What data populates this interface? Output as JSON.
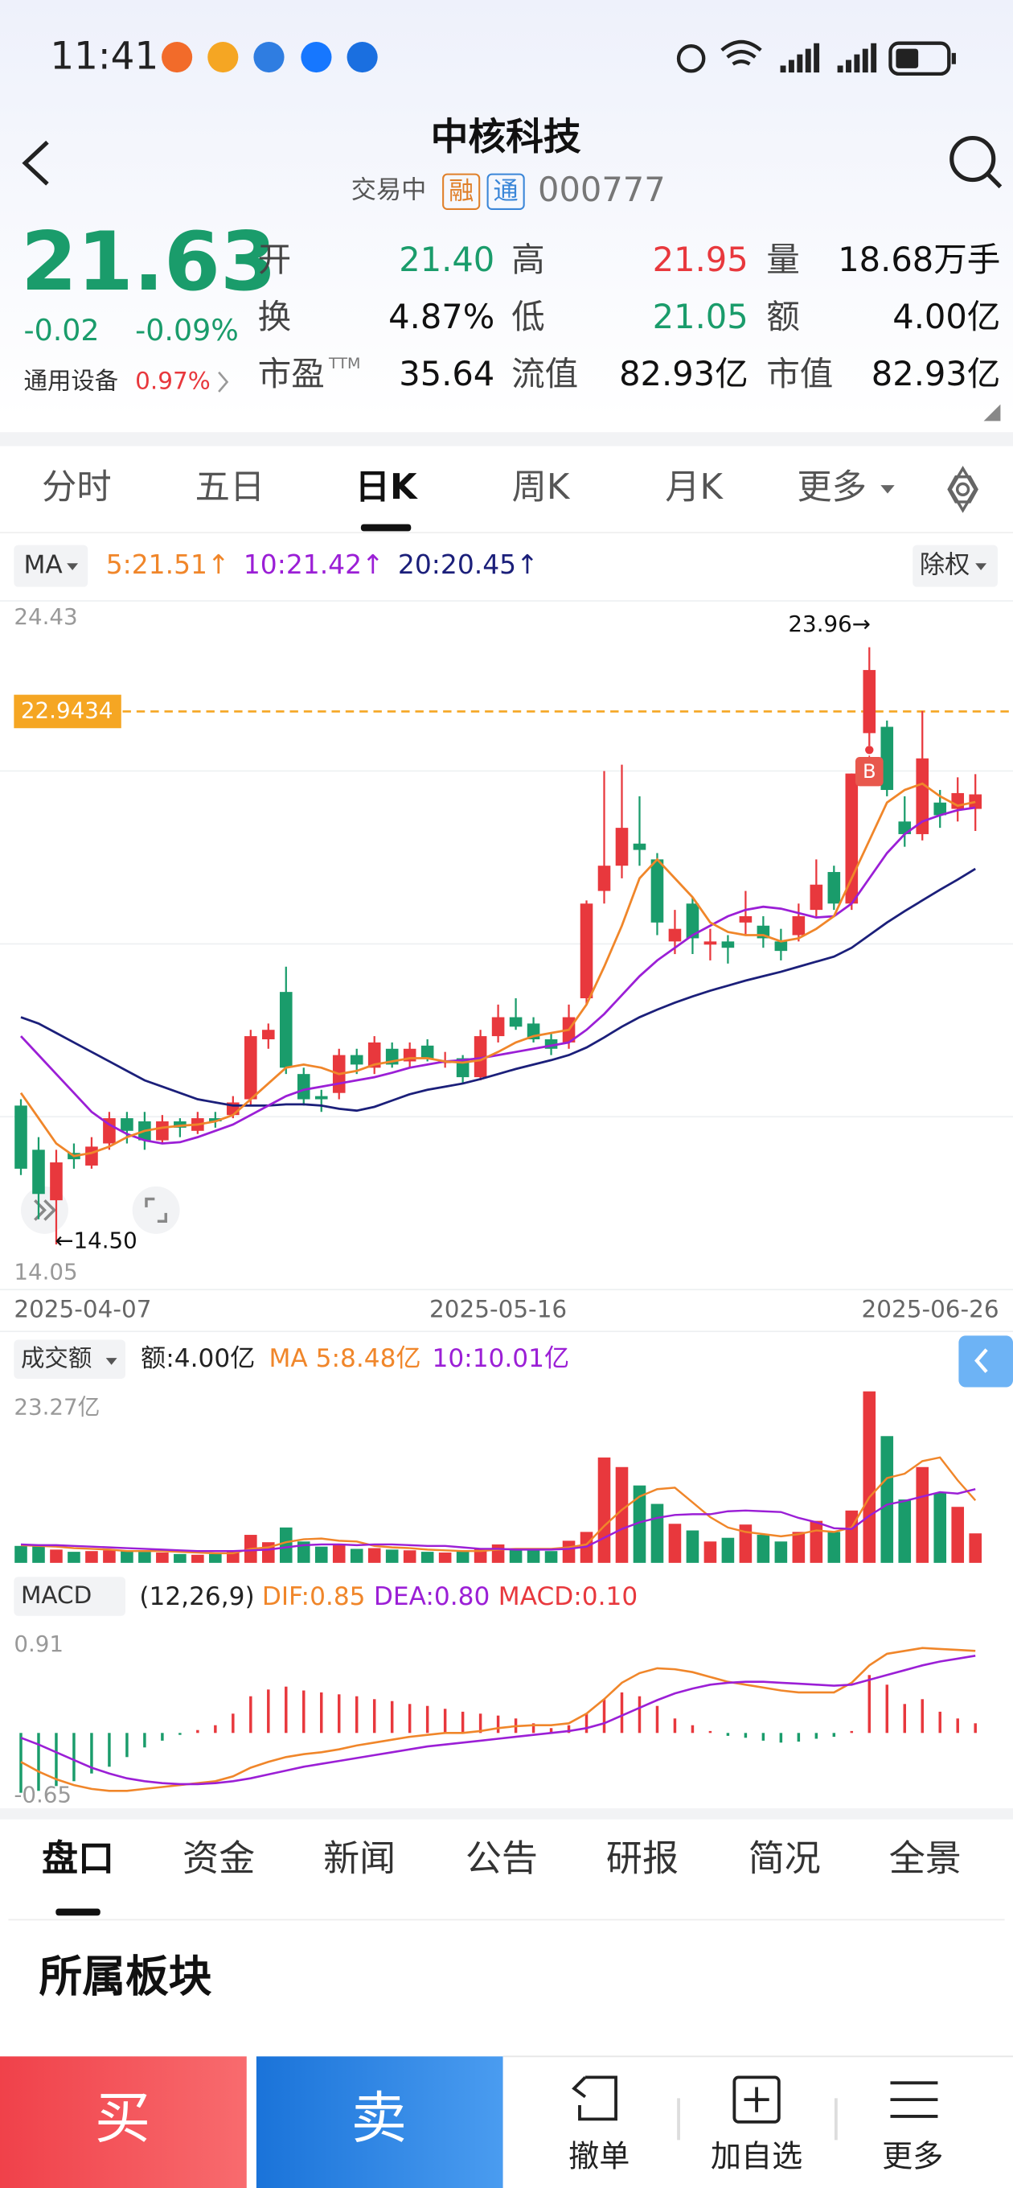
{
  "status_bar": {
    "time": "11:41"
  },
  "header": {
    "title": "中核科技",
    "status": "交易中",
    "badges": [
      "融",
      "通"
    ],
    "code": "000777"
  },
  "quote": {
    "price": "21.63",
    "change": "-0.02",
    "change_pct": "-0.09%",
    "color": "#1a9c6b",
    "sector": "通用设备",
    "sector_change": "0.97%",
    "sector_color": "#e8383d",
    "fields": [
      {
        "label": "开",
        "value": "21.40",
        "color": "#1a9c6b"
      },
      {
        "label": "高",
        "value": "21.95",
        "color": "#e8383d"
      },
      {
        "label": "量",
        "value": "18.68万手",
        "color": "#111111"
      },
      {
        "label": "换",
        "value": "4.87%",
        "color": "#111111"
      },
      {
        "label": "低",
        "value": "21.05",
        "color": "#1a9c6b"
      },
      {
        "label": "额",
        "value": "4.00亿",
        "color": "#111111"
      },
      {
        "label": "市盈",
        "sup": "TTM",
        "value": "35.64",
        "color": "#111111"
      },
      {
        "label": "流值",
        "value": "82.93亿",
        "color": "#111111"
      },
      {
        "label": "市值",
        "value": "82.93亿",
        "color": "#111111"
      }
    ]
  },
  "period_tabs": {
    "items": [
      "分时",
      "五日",
      "日K",
      "周K",
      "月K",
      "更多"
    ],
    "active": 2
  },
  "kline": {
    "type": "candlestick",
    "indicator": "MA",
    "ma_legend": [
      {
        "text": "5:21.51↑",
        "color": "#f0862a"
      },
      {
        "text": "10:21.42↑",
        "color": "#9b1fd6"
      },
      {
        "text": "20:20.45↑",
        "color": "#1b1f7a"
      }
    ],
    "adjust": "除权",
    "ylim": [
      14.05,
      24.43
    ],
    "yticks": [
      24.43,
      14.05
    ],
    "ref_line": 22.9434,
    "ref_color": "#f5a623",
    "high_label": {
      "value": 23.96,
      "label": "23.96→"
    },
    "low_label": {
      "value": 14.5,
      "label": "←14.50"
    },
    "buy_marker": "B",
    "up_color": "#e8383d",
    "down_color": "#1a9c6b",
    "categories": [
      "2025-04-07",
      null,
      null,
      null,
      null,
      null,
      null,
      null,
      null,
      null,
      null,
      null,
      null,
      null,
      null,
      null,
      null,
      null,
      null,
      null,
      null,
      null,
      null,
      null,
      null,
      null,
      null,
      "2025-05-16",
      null,
      null,
      null,
      null,
      null,
      null,
      null,
      null,
      null,
      null,
      null,
      null,
      null,
      null,
      null,
      null,
      null,
      null,
      null,
      null,
      null,
      null,
      null,
      null,
      null,
      null,
      "2025-06-26"
    ],
    "open": [
      16.7,
      16.0,
      15.2,
      15.95,
      15.75,
      16.1,
      16.5,
      16.45,
      16.15,
      16.45,
      16.3,
      16.5,
      16.55,
      16.8,
      17.75,
      18.5,
      17.2,
      16.85,
      16.9,
      17.5,
      17.3,
      17.6,
      17.4,
      17.65,
      17.4,
      17.45,
      17.15,
      17.8,
      18.1,
      18.0,
      17.75,
      17.7,
      18.4,
      20.1,
      20.5,
      20.85,
      20.6,
      19.3,
      19.9,
      19.25,
      19.3,
      19.6,
      19.55,
      19.3,
      19.4,
      19.8,
      20.4,
      19.9,
      22.6,
      22.7,
      21.2,
      21.0,
      21.5,
      21.4,
      21.4
    ],
    "close": [
      15.7,
      15.3,
      15.8,
      15.85,
      16.05,
      16.5,
      16.3,
      16.15,
      16.45,
      16.35,
      16.5,
      16.45,
      16.75,
      17.8,
      17.9,
      17.3,
      16.8,
      16.8,
      17.5,
      17.35,
      17.7,
      17.35,
      17.6,
      17.45,
      17.4,
      17.15,
      17.8,
      18.1,
      17.95,
      17.75,
      17.6,
      18.1,
      19.9,
      20.5,
      21.1,
      20.75,
      19.6,
      19.5,
      19.35,
      19.3,
      19.2,
      19.7,
      19.35,
      19.15,
      19.7,
      20.2,
      19.9,
      21.96,
      23.6,
      21.7,
      21.0,
      22.2,
      21.3,
      21.65,
      21.63
    ],
    "high": [
      16.8,
      16.2,
      16.0,
      16.1,
      16.2,
      16.6,
      16.6,
      16.6,
      16.55,
      16.5,
      16.6,
      16.6,
      16.85,
      17.9,
      18.0,
      18.9,
      17.3,
      16.95,
      17.6,
      17.6,
      17.8,
      17.7,
      17.7,
      17.75,
      17.55,
      17.5,
      17.9,
      18.3,
      18.4,
      18.1,
      17.85,
      18.3,
      19.95,
      22.0,
      22.1,
      21.6,
      20.7,
      19.8,
      20.0,
      19.5,
      19.4,
      20.1,
      19.7,
      19.5,
      19.9,
      20.6,
      20.5,
      21.96,
      23.96,
      22.8,
      21.6,
      22.95,
      21.7,
      21.9,
      21.95
    ],
    "low": [
      15.6,
      14.9,
      14.5,
      15.7,
      15.7,
      16.0,
      16.1,
      16.0,
      16.1,
      16.2,
      16.25,
      16.35,
      16.5,
      16.7,
      17.6,
      17.2,
      16.7,
      16.6,
      16.8,
      17.2,
      17.2,
      17.3,
      17.3,
      17.4,
      17.3,
      17.05,
      17.1,
      17.7,
      17.9,
      17.7,
      17.5,
      17.6,
      18.3,
      19.9,
      20.3,
      20.5,
      19.4,
      19.1,
      19.1,
      19.0,
      18.95,
      19.4,
      19.2,
      19.0,
      19.3,
      19.7,
      19.8,
      19.8,
      22.4,
      21.6,
      20.8,
      20.9,
      21.1,
      21.2,
      21.05
    ],
    "series": [
      {
        "color": "#1b1f7a",
        "values": [
          18.1,
          18.0,
          17.85,
          17.7,
          17.55,
          17.4,
          17.25,
          17.1,
          17.0,
          16.9,
          16.8,
          16.75,
          16.7,
          16.7,
          16.7,
          16.72,
          16.72,
          16.7,
          16.65,
          16.62,
          16.68,
          16.78,
          16.88,
          16.95,
          17.0,
          17.05,
          17.12,
          17.2,
          17.28,
          17.35,
          17.42,
          17.5,
          17.62,
          17.78,
          17.95,
          18.1,
          18.22,
          18.33,
          18.43,
          18.52,
          18.6,
          18.68,
          18.75,
          18.82,
          18.9,
          18.98,
          19.06,
          19.2,
          19.4,
          19.6,
          19.78,
          19.95,
          20.12,
          20.28,
          20.45
        ]
      },
      {
        "color": "#9b1fd6",
        "values": [
          17.8,
          17.5,
          17.2,
          16.9,
          16.6,
          16.4,
          16.25,
          16.15,
          16.1,
          16.12,
          16.2,
          16.3,
          16.4,
          16.55,
          16.7,
          16.85,
          16.95,
          17.0,
          17.05,
          17.1,
          17.15,
          17.22,
          17.3,
          17.35,
          17.4,
          17.42,
          17.45,
          17.5,
          17.55,
          17.6,
          17.65,
          17.7,
          17.9,
          18.15,
          18.45,
          18.75,
          19.0,
          19.2,
          19.4,
          19.55,
          19.7,
          19.8,
          19.85,
          19.82,
          19.75,
          19.68,
          19.7,
          19.9,
          20.3,
          20.7,
          21.0,
          21.2,
          21.3,
          21.38,
          21.42
        ]
      },
      {
        "color": "#f0862a",
        "values": [
          16.9,
          16.5,
          16.1,
          15.9,
          15.95,
          16.05,
          16.2,
          16.3,
          16.35,
          16.38,
          16.4,
          16.45,
          16.55,
          16.8,
          17.05,
          17.3,
          17.35,
          17.3,
          17.2,
          17.25,
          17.35,
          17.4,
          17.45,
          17.45,
          17.4,
          17.38,
          17.42,
          17.55,
          17.7,
          17.8,
          17.85,
          17.9,
          18.3,
          18.9,
          19.55,
          20.3,
          20.6,
          20.3,
          20.0,
          19.6,
          19.45,
          19.4,
          19.4,
          19.3,
          19.35,
          19.5,
          19.7,
          20.3,
          20.9,
          21.5,
          21.7,
          21.8,
          21.6,
          21.45,
          21.51
        ]
      }
    ]
  },
  "volume": {
    "type": "bar",
    "selector": "成交额",
    "amount": "额:4.00亿",
    "ma_legend": [
      {
        "text": "MA 5:8.48亿",
        "color": "#f0862a"
      },
      {
        "text": "10:10.01亿",
        "color": "#9b1fd6"
      }
    ],
    "ylim": [
      0,
      23.27
    ],
    "yticks": [
      {
        "value": 23.27,
        "label": "23.27亿"
      }
    ],
    "values": [
      2.3,
      2.5,
      1.8,
      1.5,
      1.6,
      1.7,
      1.6,
      1.5,
      1.4,
      1.2,
      1.1,
      1.2,
      1.6,
      3.8,
      2.8,
      4.8,
      2.9,
      2.2,
      2.6,
      1.9,
      2.0,
      1.8,
      1.7,
      1.5,
      1.4,
      1.6,
      2.0,
      2.5,
      1.9,
      1.7,
      1.6,
      3.0,
      4.2,
      14.3,
      13.0,
      10.5,
      8.0,
      5.3,
      4.4,
      2.9,
      3.4,
      5.2,
      3.8,
      2.9,
      4.2,
      5.7,
      4.2,
      7.1,
      23.27,
      17.2,
      8.6,
      13.0,
      9.5,
      7.6,
      4.0
    ],
    "series": [
      {
        "color": "#f0862a",
        "values": [
          2.4,
          2.3,
          2.2,
          2.0,
          1.9,
          1.8,
          1.6,
          1.6,
          1.6,
          1.5,
          1.4,
          1.3,
          1.3,
          1.9,
          2.1,
          2.8,
          3.2,
          3.3,
          3.0,
          2.9,
          2.3,
          2.1,
          2.0,
          1.8,
          1.7,
          1.6,
          1.6,
          1.8,
          1.9,
          1.9,
          1.9,
          2.1,
          2.5,
          5.0,
          7.2,
          9.0,
          10.0,
          10.2,
          8.2,
          6.2,
          4.8,
          4.2,
          3.9,
          3.6,
          3.9,
          4.4,
          4.2,
          4.8,
          8.9,
          11.5,
          12.1,
          13.8,
          14.3,
          11.2,
          8.48
        ]
      },
      {
        "color": "#9b1fd6",
        "values": [
          2.5,
          2.4,
          2.4,
          2.3,
          2.2,
          2.1,
          2.0,
          1.9,
          1.8,
          1.7,
          1.6,
          1.6,
          1.6,
          1.7,
          1.8,
          2.1,
          2.4,
          2.5,
          2.5,
          2.4,
          2.5,
          2.5,
          2.4,
          2.3,
          2.3,
          2.1,
          1.9,
          1.9,
          1.8,
          1.8,
          1.8,
          1.9,
          2.2,
          3.4,
          4.6,
          5.5,
          6.1,
          6.5,
          6.6,
          6.6,
          7.0,
          7.1,
          7.0,
          6.9,
          6.1,
          5.5,
          4.7,
          4.6,
          6.4,
          7.9,
          8.4,
          9.0,
          9.6,
          9.4,
          10.01
        ]
      }
    ]
  },
  "macd": {
    "type": "bar",
    "selector": "MACD",
    "params": "(12,26,9)",
    "legend": [
      {
        "text": "DIF:0.85",
        "color": "#f0862a"
      },
      {
        "text": "DEA:0.80",
        "color": "#9b1fd6"
      },
      {
        "text": "MACD:0.10",
        "color": "#e8383d"
      }
    ],
    "ylim": [
      -0.65,
      0.91
    ],
    "yticks": [
      0.91,
      -0.65
    ],
    "values": [
      -0.62,
      -0.6,
      -0.55,
      -0.5,
      -0.42,
      -0.35,
      -0.25,
      -0.15,
      -0.08,
      -0.02,
      0.03,
      0.08,
      0.2,
      0.38,
      0.45,
      0.48,
      0.44,
      0.42,
      0.4,
      0.38,
      0.35,
      0.33,
      0.3,
      0.28,
      0.25,
      0.22,
      0.2,
      0.18,
      0.15,
      0.1,
      0.05,
      0.08,
      0.2,
      0.35,
      0.42,
      0.38,
      0.28,
      0.15,
      0.08,
      0.02,
      -0.03,
      -0.05,
      -0.08,
      -0.1,
      -0.09,
      -0.06,
      -0.04,
      0.02,
      0.6,
      0.5,
      0.3,
      0.35,
      0.22,
      0.15,
      0.1
    ],
    "series": [
      {
        "color": "#f0862a",
        "values": [
          -0.3,
          -0.4,
          -0.48,
          -0.54,
          -0.58,
          -0.6,
          -0.6,
          -0.58,
          -0.56,
          -0.54,
          -0.52,
          -0.5,
          -0.45,
          -0.36,
          -0.3,
          -0.25,
          -0.22,
          -0.2,
          -0.17,
          -0.13,
          -0.1,
          -0.07,
          -0.04,
          -0.02,
          0.0,
          0.0,
          0.02,
          0.05,
          0.07,
          0.08,
          0.08,
          0.1,
          0.2,
          0.35,
          0.52,
          0.62,
          0.67,
          0.66,
          0.63,
          0.58,
          0.53,
          0.5,
          0.47,
          0.44,
          0.42,
          0.42,
          0.42,
          0.52,
          0.7,
          0.82,
          0.85,
          0.88,
          0.87,
          0.86,
          0.85
        ]
      },
      {
        "color": "#9b1fd6",
        "values": [
          -0.05,
          -0.12,
          -0.2,
          -0.28,
          -0.36,
          -0.42,
          -0.47,
          -0.5,
          -0.52,
          -0.53,
          -0.53,
          -0.52,
          -0.5,
          -0.47,
          -0.43,
          -0.39,
          -0.35,
          -0.32,
          -0.29,
          -0.26,
          -0.23,
          -0.2,
          -0.17,
          -0.14,
          -0.12,
          -0.1,
          -0.08,
          -0.06,
          -0.04,
          -0.02,
          0.0,
          0.02,
          0.05,
          0.1,
          0.18,
          0.26,
          0.34,
          0.41,
          0.46,
          0.5,
          0.52,
          0.53,
          0.53,
          0.52,
          0.51,
          0.5,
          0.49,
          0.5,
          0.55,
          0.6,
          0.65,
          0.7,
          0.74,
          0.77,
          0.8
        ]
      }
    ]
  },
  "detail_tabs": {
    "items": [
      "盘口",
      "资金",
      "新闻",
      "公告",
      "研报",
      "简况",
      "全景"
    ],
    "active": 0
  },
  "section_title": "所属板块",
  "actions": {
    "buy": "买",
    "sell": "卖",
    "items": [
      "撤单",
      "加自选",
      "更多"
    ]
  }
}
